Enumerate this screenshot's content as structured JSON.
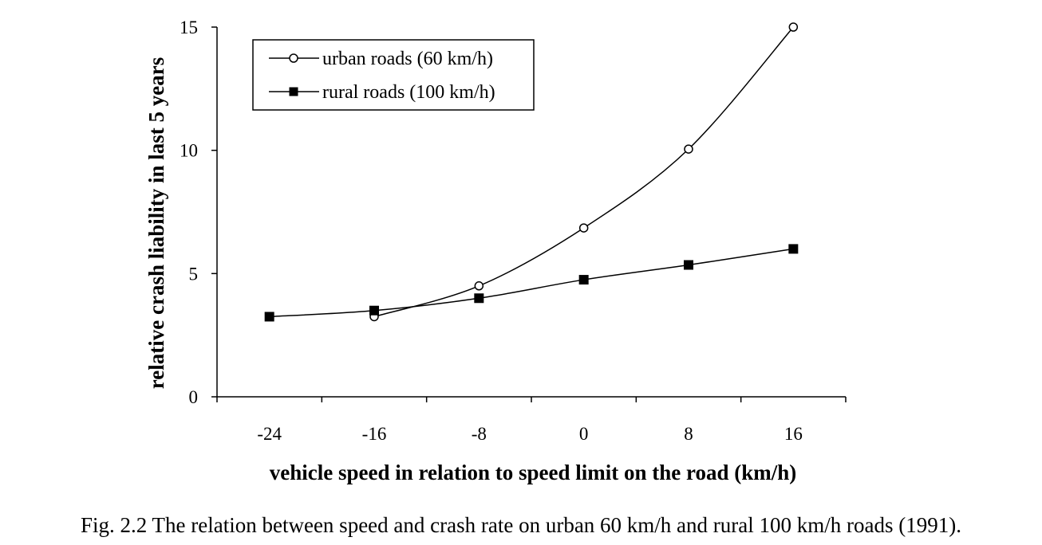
{
  "chart_data": {
    "type": "line",
    "title": "",
    "xlabel": "vehicle speed in relation to speed limit on the road (km/h)",
    "ylabel": "relative crash liability in last 5 years",
    "x_ticks": [
      -24,
      -16,
      -8,
      0,
      8,
      16
    ],
    "y_ticks": [
      0,
      5,
      10,
      15
    ],
    "xlim": [
      -28,
      20
    ],
    "ylim": [
      0,
      15
    ],
    "grid": false,
    "legend_position": "top-left",
    "series": [
      {
        "name": "urban roads (60 km/h)",
        "marker": "open-circle",
        "x": [
          -16,
          -8,
          0,
          8,
          16
        ],
        "y": [
          3.25,
          4.5,
          6.85,
          10.05,
          15.0
        ]
      },
      {
        "name": "rural roads (100 km/h)",
        "marker": "filled-square",
        "x": [
          -24,
          -16,
          -8,
          0,
          8,
          16
        ],
        "y": [
          3.25,
          3.5,
          4.0,
          4.75,
          5.35,
          6.0
        ]
      }
    ]
  },
  "caption": "Fig. 2.2 The relation between speed and crash rate on urban 60 km/h and rural 100 km/h roads (1991)."
}
